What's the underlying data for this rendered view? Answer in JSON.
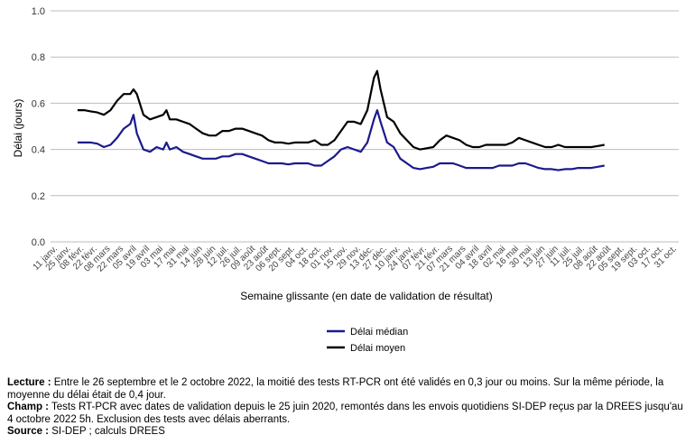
{
  "chart_data": {
    "type": "line",
    "xlabel": "Semaine glissante (en date de validation de résultat)",
    "ylabel": "Délai (jours)",
    "ylim": [
      0,
      1.0
    ],
    "yticks": [
      "0.0",
      "0.2",
      "0.4",
      "0.6",
      "0.8",
      "1.0"
    ],
    "grid": "horizontal",
    "legend_position": "bottom",
    "x_ticks": [
      "11 janv.",
      "25 janv.",
      "08 févr.",
      "22 févr.",
      "08 mars",
      "22 mars",
      "05 avril",
      "19 avril",
      "03 mai",
      "17 mai",
      "31 mai",
      "14 juin",
      "28 juin",
      "12 juil.",
      "26 juil.",
      "09 août",
      "23 août",
      "06 sept.",
      "20 sept.",
      "04 oct.",
      "18 oct.",
      "01 nov.",
      "15 nov.",
      "29 nov.",
      "13 déc.",
      "27 déc.",
      "10 janv.",
      "24 janv.",
      "07 févr.",
      "21 févr.",
      "07 mars",
      "21 mars",
      "04 avril",
      "18 avril",
      "02 mai",
      "16 mai",
      "30 mai",
      "13 juin",
      "27 juin",
      "11 juil.",
      "25 juil.",
      "08 août",
      "22 août",
      "05 sept.",
      "19 sept.",
      "03 oct.",
      "17 oct.",
      "31 oct."
    ],
    "series": [
      {
        "name": "Délai médian",
        "color": "#1a1a8c",
        "points": [
          [
            3,
            0.43
          ],
          [
            4,
            0.43
          ],
          [
            5,
            0.43
          ],
          [
            6,
            0.425
          ],
          [
            7,
            0.41
          ],
          [
            8,
            0.42
          ],
          [
            9,
            0.45
          ],
          [
            10,
            0.49
          ],
          [
            11,
            0.51
          ],
          [
            11.5,
            0.55
          ],
          [
            12,
            0.47
          ],
          [
            13,
            0.4
          ],
          [
            14,
            0.39
          ],
          [
            15,
            0.41
          ],
          [
            16,
            0.4
          ],
          [
            16.5,
            0.43
          ],
          [
            17,
            0.4
          ],
          [
            18,
            0.41
          ],
          [
            19,
            0.39
          ],
          [
            20,
            0.38
          ],
          [
            21,
            0.37
          ],
          [
            22,
            0.36
          ],
          [
            23,
            0.36
          ],
          [
            24,
            0.36
          ],
          [
            25,
            0.37
          ],
          [
            26,
            0.37
          ],
          [
            27,
            0.38
          ],
          [
            28,
            0.38
          ],
          [
            29,
            0.37
          ],
          [
            30,
            0.36
          ],
          [
            31,
            0.35
          ],
          [
            32,
            0.34
          ],
          [
            33,
            0.34
          ],
          [
            34,
            0.34
          ],
          [
            35,
            0.335
          ],
          [
            36,
            0.34
          ],
          [
            37,
            0.34
          ],
          [
            38,
            0.34
          ],
          [
            39,
            0.33
          ],
          [
            40,
            0.33
          ],
          [
            41,
            0.35
          ],
          [
            42,
            0.37
          ],
          [
            43,
            0.4
          ],
          [
            44,
            0.41
          ],
          [
            45,
            0.4
          ],
          [
            46,
            0.39
          ],
          [
            47,
            0.43
          ],
          [
            48,
            0.53
          ],
          [
            48.5,
            0.57
          ],
          [
            49,
            0.52
          ],
          [
            50,
            0.43
          ],
          [
            51,
            0.41
          ],
          [
            52,
            0.36
          ],
          [
            53,
            0.34
          ],
          [
            54,
            0.32
          ],
          [
            55,
            0.315
          ],
          [
            56,
            0.32
          ],
          [
            57,
            0.325
          ],
          [
            58,
            0.34
          ],
          [
            59,
            0.34
          ],
          [
            60,
            0.34
          ],
          [
            61,
            0.33
          ],
          [
            62,
            0.32
          ],
          [
            63,
            0.32
          ],
          [
            64,
            0.32
          ],
          [
            65,
            0.32
          ],
          [
            66,
            0.32
          ],
          [
            67,
            0.33
          ],
          [
            68,
            0.33
          ],
          [
            69,
            0.33
          ],
          [
            70,
            0.34
          ],
          [
            71,
            0.34
          ],
          [
            72,
            0.33
          ],
          [
            73,
            0.32
          ],
          [
            74,
            0.315
          ],
          [
            75,
            0.315
          ],
          [
            76,
            0.31
          ],
          [
            77,
            0.315
          ],
          [
            78,
            0.315
          ],
          [
            79,
            0.32
          ],
          [
            80,
            0.32
          ],
          [
            81,
            0.32
          ],
          [
            82,
            0.325
          ],
          [
            83,
            0.33
          ]
        ]
      },
      {
        "name": "Délai moyen",
        "color": "#000000",
        "points": [
          [
            3,
            0.57
          ],
          [
            4,
            0.57
          ],
          [
            5,
            0.565
          ],
          [
            6,
            0.56
          ],
          [
            7,
            0.55
          ],
          [
            8,
            0.57
          ],
          [
            9,
            0.61
          ],
          [
            10,
            0.64
          ],
          [
            11,
            0.64
          ],
          [
            11.5,
            0.66
          ],
          [
            12,
            0.64
          ],
          [
            13,
            0.55
          ],
          [
            14,
            0.53
          ],
          [
            15,
            0.54
          ],
          [
            16,
            0.55
          ],
          [
            16.5,
            0.57
          ],
          [
            17,
            0.53
          ],
          [
            18,
            0.53
          ],
          [
            19,
            0.52
          ],
          [
            20,
            0.51
          ],
          [
            21,
            0.49
          ],
          [
            22,
            0.47
          ],
          [
            23,
            0.46
          ],
          [
            24,
            0.46
          ],
          [
            25,
            0.48
          ],
          [
            26,
            0.48
          ],
          [
            27,
            0.49
          ],
          [
            28,
            0.49
          ],
          [
            29,
            0.48
          ],
          [
            30,
            0.47
          ],
          [
            31,
            0.46
          ],
          [
            32,
            0.44
          ],
          [
            33,
            0.43
          ],
          [
            34,
            0.43
          ],
          [
            35,
            0.425
          ],
          [
            36,
            0.43
          ],
          [
            37,
            0.43
          ],
          [
            38,
            0.43
          ],
          [
            39,
            0.44
          ],
          [
            40,
            0.42
          ],
          [
            41,
            0.42
          ],
          [
            42,
            0.44
          ],
          [
            43,
            0.48
          ],
          [
            44,
            0.52
          ],
          [
            45,
            0.52
          ],
          [
            46,
            0.51
          ],
          [
            47,
            0.57
          ],
          [
            48,
            0.71
          ],
          [
            48.5,
            0.74
          ],
          [
            49,
            0.66
          ],
          [
            50,
            0.54
          ],
          [
            51,
            0.52
          ],
          [
            52,
            0.47
          ],
          [
            53,
            0.44
          ],
          [
            54,
            0.41
          ],
          [
            55,
            0.4
          ],
          [
            56,
            0.405
          ],
          [
            57,
            0.41
          ],
          [
            58,
            0.44
          ],
          [
            59,
            0.46
          ],
          [
            60,
            0.45
          ],
          [
            61,
            0.44
          ],
          [
            62,
            0.42
          ],
          [
            63,
            0.41
          ],
          [
            64,
            0.41
          ],
          [
            65,
            0.42
          ],
          [
            66,
            0.42
          ],
          [
            67,
            0.42
          ],
          [
            68,
            0.42
          ],
          [
            69,
            0.43
          ],
          [
            70,
            0.45
          ],
          [
            71,
            0.44
          ],
          [
            72,
            0.43
          ],
          [
            73,
            0.42
          ],
          [
            74,
            0.41
          ],
          [
            75,
            0.41
          ],
          [
            76,
            0.42
          ],
          [
            77,
            0.41
          ],
          [
            78,
            0.41
          ],
          [
            79,
            0.41
          ],
          [
            80,
            0.41
          ],
          [
            81,
            0.41
          ],
          [
            82,
            0.415
          ],
          [
            83,
            0.42
          ]
        ]
      }
    ]
  },
  "notes": {
    "lecture_label": "Lecture :",
    "lecture_text": " Entre le 26 septembre et le 2 octobre 2022, la moitié des tests RT-PCR ont été validés en 0,3 jour ou moins. Sur la même période, la moyenne du délai était de 0,4 jour.",
    "champ_label": "Champ :",
    "champ_text": " Tests RT-PCR avec dates de validation depuis le 25 juin 2020, remontés dans les envois quotidiens SI-DEP reçus par la DREES jusqu'au 4 octobre 2022 5h. Exclusion des tests avec délais aberrants.",
    "source_label": "Source :",
    "source_text": " SI-DEP ; calculs DREES"
  }
}
